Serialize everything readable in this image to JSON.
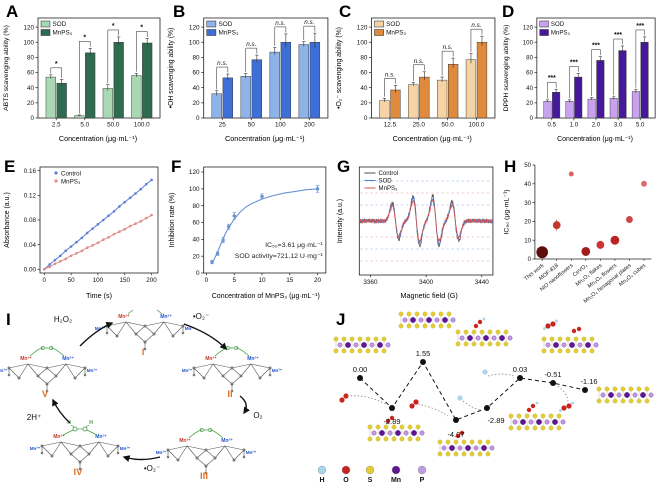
{
  "letters": {
    "A": "A",
    "B": "B",
    "C": "C",
    "D": "D",
    "E": "E",
    "F": "F",
    "G": "G",
    "H": "H",
    "I": "I",
    "J": "J"
  },
  "chart_data": [
    {
      "id": "A",
      "type": "bar",
      "title": "",
      "ylabel": "ABTS scavenging ability (%)",
      "xlabel": "Concentration (μg·mL⁻¹)",
      "ylim": [
        0,
        120
      ],
      "yticks": [
        0,
        20,
        40,
        60,
        80,
        100,
        120
      ],
      "categories": [
        "2.5",
        "5.0",
        "50.0",
        "100.0"
      ],
      "series": [
        {
          "name": "SOD",
          "color": "#a9d8b2",
          "values": [
            54,
            3,
            39,
            56
          ],
          "errors": [
            3,
            1,
            5,
            3
          ]
        },
        {
          "name": "MnPS₃",
          "color": "#2e6b4f",
          "values": [
            46,
            86,
            100,
            99
          ],
          "errors": [
            5,
            6,
            7,
            6
          ]
        }
      ],
      "sig": [
        "*",
        "*",
        "*",
        "*"
      ]
    },
    {
      "id": "B",
      "type": "bar",
      "title": "",
      "ylabel": "•OH scavenging ability (%)",
      "xlabel": "Concentration (μg·mL⁻¹)",
      "ylim": [
        0,
        120
      ],
      "yticks": [
        0,
        20,
        40,
        60,
        80,
        100,
        120
      ],
      "categories": [
        "25",
        "50",
        "100",
        "200"
      ],
      "series": [
        {
          "name": "SOD",
          "color": "#8db3e8",
          "values": [
            32,
            55,
            87,
            97
          ],
          "errors": [
            4,
            4,
            6,
            4
          ]
        },
        {
          "name": "MnPS₃",
          "color": "#3d6fd6",
          "values": [
            53,
            77,
            100,
            100
          ],
          "errors": [
            5,
            6,
            11,
            12
          ]
        }
      ],
      "sig": [
        "n.s.",
        "n.s.",
        "n.s.",
        "n.s."
      ]
    },
    {
      "id": "C",
      "type": "bar",
      "title": "",
      "ylabel": "•O₂⁻ scavenging ability (%)",
      "xlabel": "Concentration (μg·mL⁻¹)",
      "ylim": [
        0,
        120
      ],
      "yticks": [
        0,
        20,
        40,
        60,
        80,
        100,
        120
      ],
      "categories": [
        "12.5",
        "25.0",
        "50.0",
        "100.0"
      ],
      "series": [
        {
          "name": "SOD",
          "color": "#f6d3a4",
          "values": [
            23,
            44,
            50,
            77
          ],
          "errors": [
            3,
            3,
            4,
            8
          ]
        },
        {
          "name": "MnPS₃",
          "color": "#e08a3e",
          "values": [
            37,
            54,
            71,
            100
          ],
          "errors": [
            6,
            7,
            8,
            8
          ]
        }
      ],
      "sig": [
        "n.s.",
        "n.s.",
        "n.s.",
        "n.s."
      ]
    },
    {
      "id": "D",
      "type": "bar",
      "title": "",
      "ylabel": "DPPH scavenging ability (%)",
      "xlabel": "Concentration (μg·mL⁻¹)",
      "ylim": [
        0,
        120
      ],
      "yticks": [
        0,
        20,
        40,
        60,
        80,
        100,
        120
      ],
      "categories": [
        "0.5",
        "1.0",
        "2.0",
        "3.0",
        "5.0"
      ],
      "series": [
        {
          "name": "SOD",
          "color": "#c9a2ee",
          "values": [
            22,
            22,
            25,
            26,
            35
          ],
          "errors": [
            2,
            2,
            2,
            2,
            3
          ]
        },
        {
          "name": "MnPS₃",
          "color": "#45189c",
          "values": [
            34,
            54,
            76,
            89,
            100
          ],
          "errors": [
            4,
            5,
            5,
            6,
            7
          ]
        }
      ],
      "sig": [
        "***",
        "***",
        "***",
        "***",
        "***"
      ]
    },
    {
      "id": "E",
      "type": "line",
      "title": "",
      "ylabel": "Absorbance (a.u.)",
      "xlabel": "Time (s)",
      "xticks": [
        0,
        50,
        100,
        150,
        200
      ],
      "yticks": [
        0,
        0.04,
        0.08,
        0.12,
        0.16
      ],
      "ytick_labels": [
        "0.00",
        "0.04",
        "0.08",
        "0.12",
        "0.16"
      ],
      "xlim": [
        -8,
        212
      ],
      "ylim": [
        -0.006,
        0.166
      ],
      "x": [
        0,
        10,
        20,
        30,
        40,
        50,
        60,
        70,
        80,
        90,
        100,
        110,
        120,
        130,
        140,
        150,
        160,
        170,
        180,
        190,
        200
      ],
      "series": [
        {
          "name": "Control",
          "color": "#5b7fd4",
          "values": [
            0.0,
            0.008,
            0.015,
            0.022,
            0.03,
            0.037,
            0.044,
            0.051,
            0.059,
            0.066,
            0.073,
            0.08,
            0.087,
            0.094,
            0.102,
            0.109,
            0.116,
            0.123,
            0.13,
            0.138,
            0.145
          ]
        },
        {
          "name": "MnPS₃",
          "color": "#e08a8a",
          "values": [
            0.0,
            0.004,
            0.009,
            0.013,
            0.017,
            0.022,
            0.026,
            0.03,
            0.035,
            0.039,
            0.043,
            0.048,
            0.052,
            0.057,
            0.061,
            0.065,
            0.07,
            0.074,
            0.078,
            0.083,
            0.088
          ]
        }
      ]
    },
    {
      "id": "F",
      "type": "scatter-curve",
      "title": "",
      "ylabel": "Inhibition rate (%)",
      "xlabel": "Concentration of MnPS₃ (μg·mL⁻¹)",
      "yticks": [
        0,
        20,
        40,
        60,
        80,
        100,
        120
      ],
      "xticks": [
        0,
        5,
        10,
        15,
        20
      ],
      "xlim": [
        -0.5,
        21.5
      ],
      "ylim": [
        0,
        126
      ],
      "color": "#6b93d6",
      "points_x": [
        1,
        2,
        3,
        4,
        5,
        10,
        20
      ],
      "points_y": [
        13,
        23,
        39,
        55,
        68,
        91,
        100
      ],
      "errors": [
        2,
        2,
        3,
        3,
        4,
        3,
        4
      ],
      "curve_x": [
        1,
        1.5,
        2,
        2.5,
        3,
        3.5,
        4,
        4.5,
        5,
        6,
        7,
        8,
        10,
        12,
        14,
        16,
        18,
        20
      ],
      "curve_y": [
        12,
        18,
        25,
        33,
        41,
        48,
        54,
        59,
        64,
        72,
        78,
        82,
        88,
        92,
        95,
        97,
        99,
        100
      ],
      "annotations": [
        "IC₅₀=3.61 μg·mL⁻¹",
        "SOD activity=721.12 U·mg⁻¹"
      ]
    },
    {
      "id": "G",
      "type": "esr",
      "title": "",
      "ylabel": "Intensity (a.u.)",
      "xlabel": "Magnetic field (G)",
      "xticks": [
        3360,
        3400,
        3440
      ],
      "xlim": [
        3352,
        3448
      ],
      "peaks": [
        3378,
        3393,
        3407,
        3421
      ],
      "peak_amps": [
        0.75,
        1,
        1,
        0.8
      ],
      "series": [
        {
          "name": "Control",
          "color": "#4d4d4d",
          "amp": 1.12
        },
        {
          "name": "SOD",
          "color": "#4a7fd9",
          "amp": 1.0
        },
        {
          "name": "MnPS₃",
          "color": "#d9534f",
          "amp": 0.9
        }
      ],
      "gridline_colors": [
        "#7aa6e0",
        "#e08a8a"
      ]
    },
    {
      "id": "H",
      "type": "scatter",
      "title": "",
      "ylabel": "IC₅₀ (μg·mL⁻¹)",
      "xlabel": "",
      "yticks": [
        0,
        10,
        20,
        30,
        40,
        50
      ],
      "ylim": [
        0,
        50
      ],
      "categories": [
        "This work",
        "MOF-818",
        "NiO nanoflowers",
        "CeVO₄",
        "Mn₃O₄ flakes",
        "Mn₃O₄ flowers",
        "Mn₃O₄ hexagonal plates",
        "Mn₃O₄ cubes"
      ],
      "values": [
        3.6,
        18,
        45.2,
        4,
        7.5,
        10,
        21,
        40
      ],
      "errors": [
        0.5,
        3,
        1,
        0.4,
        0.6,
        0.8,
        1.2,
        1
      ],
      "dot_sizes": [
        6,
        4,
        2.5,
        4.5,
        4,
        4.5,
        3.5,
        3
      ],
      "dot_colors": [
        "#5e0d0d",
        "#c0392b",
        "#e06060",
        "#a51c1c",
        "#cc3333",
        "#bb2222",
        "#d04545",
        "#e06a6a"
      ]
    }
  ],
  "mechanism": {
    "states": [
      "I",
      "II",
      "III",
      "IV",
      "V"
    ],
    "arrow_labels": {
      "h2o2": "H₂O₂",
      "o2rad1": "•O₂⁻",
      "o2": "O₂",
      "o2rad2": "•O₂⁻",
      "protons": "2H⁺"
    },
    "mn3": "Mn³⁺",
    "mn2": "Mn²⁺",
    "peroxo": "O═O",
    "h_atom": "H",
    "o_atom": "O",
    "state_color": "#e0762e"
  },
  "energy": {
    "path": [
      {
        "label": "0.00",
        "value": 0.0
      },
      {
        "label": "-2.89",
        "value": -2.89
      },
      {
        "label": "1.55",
        "value": 1.55
      },
      {
        "label": "-4.07",
        "value": -4.07
      },
      {
        "label": "-2.89",
        "value": -2.89
      },
      {
        "label": "0.03",
        "value": 0.03
      },
      {
        "label": "-0.51",
        "value": -0.51
      },
      {
        "label": "-1.16",
        "value": -1.16
      }
    ],
    "legend": [
      {
        "label": "H",
        "color": "#a9d6ea"
      },
      {
        "label": "O",
        "color": "#c9251f"
      },
      {
        "label": "S",
        "color": "#e2cd32"
      },
      {
        "label": "Mn",
        "color": "#5f1694"
      },
      {
        "label": "P",
        "color": "#c09ae2"
      }
    ]
  }
}
